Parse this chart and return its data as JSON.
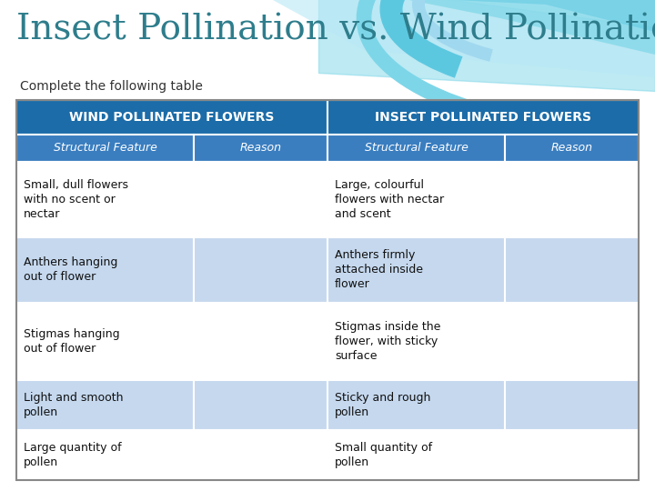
{
  "title": "Insect Pollination vs. Wind Pollination",
  "subtitle": "Complete the following table",
  "title_color": "#2E7D8C",
  "bg_color": "#FFFFFF",
  "header1_text": "WIND POLLINATED FLOWERS",
  "header2_text": "INSECT POLLINATED FLOWERS",
  "header_bg": "#1B6CA8",
  "header_text_color": "#FFFFFF",
  "subheader_bg": "#3A7EC0",
  "subheader_text_color": "#FFFFFF",
  "row_bg_white": "#FFFFFF",
  "row_bg_blue": "#C5D8EE",
  "col_headers": [
    "Structural Feature",
    "Reason",
    "Structural Feature",
    "Reason"
  ],
  "rows": [
    [
      "Small, dull flowers\nwith no scent or\nnectar",
      "",
      "Large, colourful\nflowers with nectar\nand scent",
      ""
    ],
    [
      "Anthers hanging\nout of flower",
      "",
      "Anthers firmly\nattached inside\nflower",
      ""
    ],
    [
      "Stigmas hanging\nout of flower",
      "",
      "Stigmas inside the\nflower, with sticky\nsurface",
      ""
    ],
    [
      "Light and smooth\npollen",
      "",
      "Sticky and rough\npollen",
      ""
    ],
    [
      "Large quantity of\npollen",
      "",
      "Small quantity of\npollen",
      ""
    ]
  ],
  "swirl_color1": "#7DD6E8",
  "swirl_color2": "#A8E0ED"
}
